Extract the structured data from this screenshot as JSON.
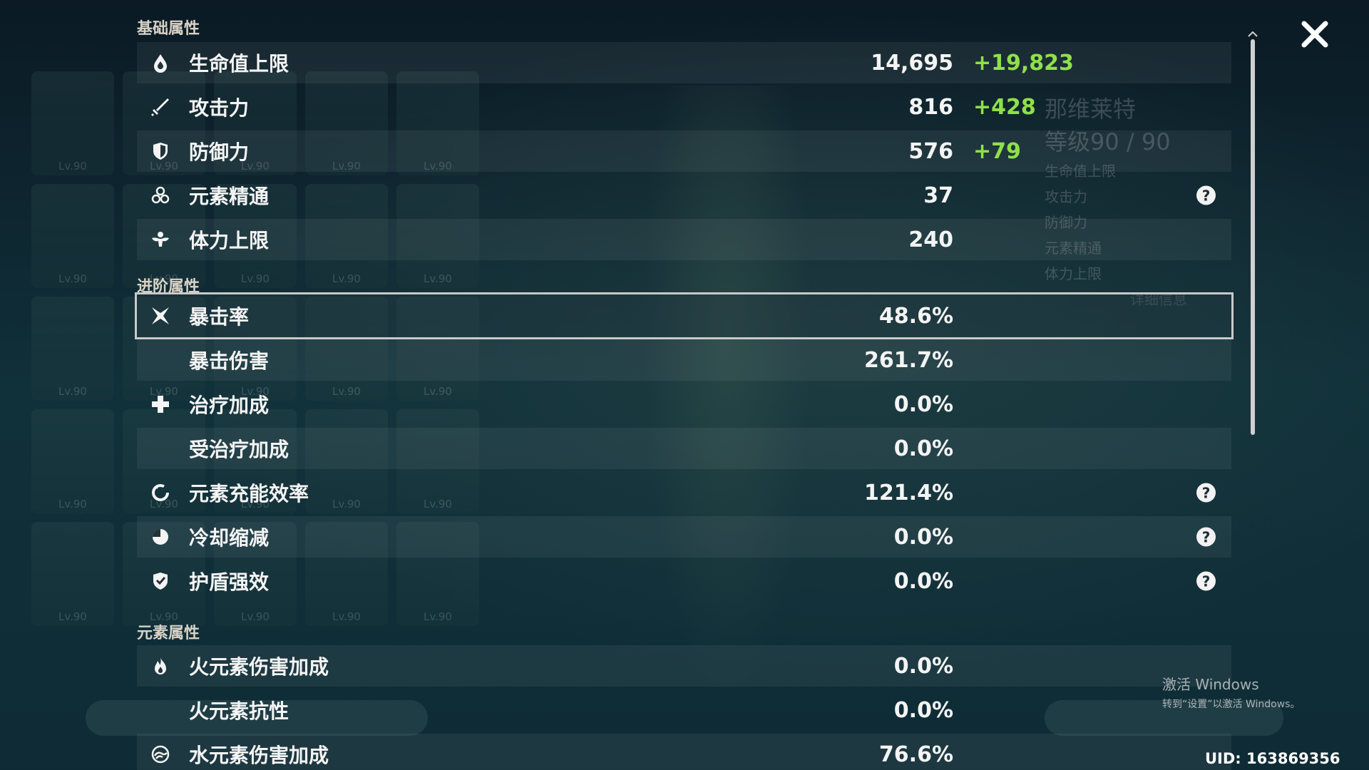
{
  "sections": {
    "basic": "基础属性",
    "advanced": "进阶属性",
    "elemental": "元素属性"
  },
  "rows": [
    {
      "label": "生命值上限",
      "value": "14,695",
      "bonus": "+19,823",
      "icon": "hp-drop-icon"
    },
    {
      "label": "攻击力",
      "value": "816",
      "bonus": "+428",
      "icon": "sword-icon"
    },
    {
      "label": "防御力",
      "value": "576",
      "bonus": "+79",
      "icon": "shield-icon"
    },
    {
      "label": "元素精通",
      "value": "37",
      "icon": "elemental-mastery-icon",
      "help": true
    },
    {
      "label": "体力上限",
      "value": "240",
      "icon": "stamina-icon"
    },
    {
      "label": "暴击率",
      "value": "48.6%",
      "icon": "crit-icon"
    },
    {
      "label": "暴击伤害",
      "value": "261.7%"
    },
    {
      "label": "治疗加成",
      "value": "0.0%",
      "icon": "healing-cross-icon"
    },
    {
      "label": "受治疗加成",
      "value": "0.0%"
    },
    {
      "label": "元素充能效率",
      "value": "121.4%",
      "icon": "energy-recharge-icon",
      "help": true
    },
    {
      "label": "冷却缩减",
      "value": "0.0%",
      "icon": "cooldown-icon",
      "help": true
    },
    {
      "label": "护盾强效",
      "value": "0.0%",
      "icon": "shield-strength-icon",
      "help": true
    },
    {
      "label": "火元素伤害加成",
      "value": "0.0%",
      "icon": "pyro-icon"
    },
    {
      "label": "火元素抗性",
      "value": "0.0%"
    },
    {
      "label": "水元素伤害加成",
      "value": "76.6%",
      "icon": "hydro-icon"
    }
  ],
  "help_glyph": "?",
  "background": {
    "card_level": "Lv.90",
    "character_name": "那维莱特",
    "level_text": "等级90 / 90",
    "stats": [
      "生命值上限",
      "攻击力",
      "防御力",
      "元素精通",
      "体力上限"
    ],
    "detail": "详细信息"
  },
  "windows_activation": {
    "title": "激活 Windows",
    "subtitle": "转到“设置”以激活 Windows。"
  },
  "uid": "UID: 163869356",
  "colors": {
    "bonus": "#8fe04a",
    "text": "#f4f4f4",
    "header": "#d8d2c6"
  }
}
